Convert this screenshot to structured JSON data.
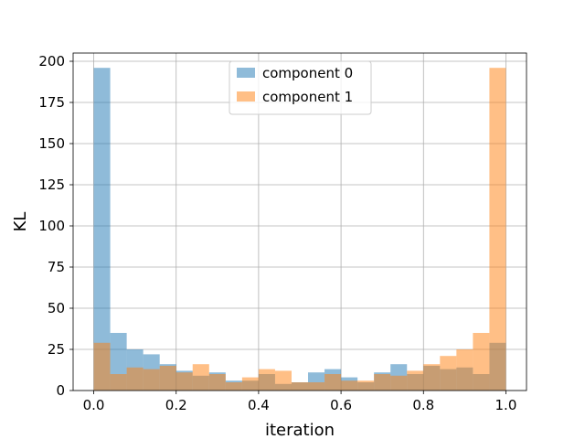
{
  "chart_data": {
    "type": "bar",
    "title": "",
    "xlabel": "iteration",
    "ylabel": "KL",
    "xlim": [
      -0.05,
      1.05
    ],
    "ylim": [
      0,
      205
    ],
    "xticks": [
      0.0,
      0.2,
      0.4,
      0.6,
      0.8,
      1.0
    ],
    "xtick_labels": [
      "0.0",
      "0.2",
      "0.4",
      "0.6",
      "0.8",
      "1.0"
    ],
    "yticks": [
      0,
      25,
      50,
      75,
      100,
      125,
      150,
      175,
      200
    ],
    "ytick_labels": [
      "0",
      "25",
      "50",
      "75",
      "100",
      "125",
      "150",
      "175",
      "200"
    ],
    "grid": true,
    "legend_position": "top-center",
    "bin_edges": [
      0.0,
      0.04,
      0.08,
      0.12,
      0.16,
      0.2,
      0.24,
      0.28,
      0.32,
      0.36,
      0.4,
      0.44,
      0.48,
      0.52,
      0.56,
      0.6,
      0.64,
      0.68,
      0.72,
      0.76,
      0.8,
      0.84,
      0.88,
      0.92,
      0.96,
      1.0
    ],
    "series": [
      {
        "name": "component 0",
        "color": "#1f77b4",
        "alpha": 0.5,
        "values": [
          196,
          35,
          25,
          22,
          16,
          12,
          9,
          11,
          6,
          6,
          10,
          4,
          5,
          11,
          13,
          8,
          5,
          11,
          16,
          10,
          15,
          13,
          14,
          10,
          29
        ]
      },
      {
        "name": "component 1",
        "color": "#ff7f0e",
        "alpha": 0.5,
        "values": [
          29,
          10,
          14,
          13,
          15,
          11,
          16,
          10,
          5,
          8,
          13,
          12,
          5,
          5,
          10,
          6,
          6,
          10,
          9,
          12,
          16,
          21,
          25,
          35,
          196
        ]
      }
    ]
  }
}
